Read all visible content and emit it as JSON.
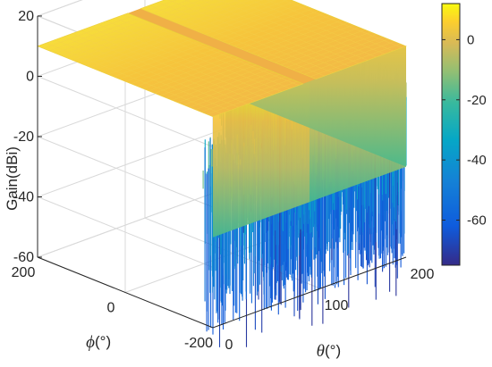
{
  "chart_data": {
    "type": "surface3d",
    "title": "",
    "zlabel": "Gain(dBi)",
    "xlabel": {
      "symbol": "θ",
      "unit": "(°)"
    },
    "ylabel": {
      "symbol": "ϕ",
      "unit": "(°)"
    },
    "xlim": [
      0,
      180
    ],
    "ylim": [
      -180,
      180
    ],
    "zlim": [
      -60,
      20
    ],
    "xticks": [
      "0",
      "100",
      "200"
    ],
    "yticks": [
      "-200",
      "0",
      "200"
    ],
    "zticks": [
      "20",
      "0",
      "-20",
      "-40",
      "-60"
    ],
    "colormap": "parula",
    "clim": [
      -75,
      12
    ],
    "colorbar_ticks": [
      "0",
      "-20",
      "-40",
      "-60"
    ],
    "grid": true,
    "description_values": {
      "plateau_gain_dBi": 10,
      "plateau_theta_range": [
        0,
        90
      ],
      "null_theta": 90,
      "min_gain_dBi": -72
    },
    "colors": {
      "parula_low": "#352a87",
      "parula_mid": "#21b1a3",
      "parula_high": "#f9fb0e"
    }
  }
}
